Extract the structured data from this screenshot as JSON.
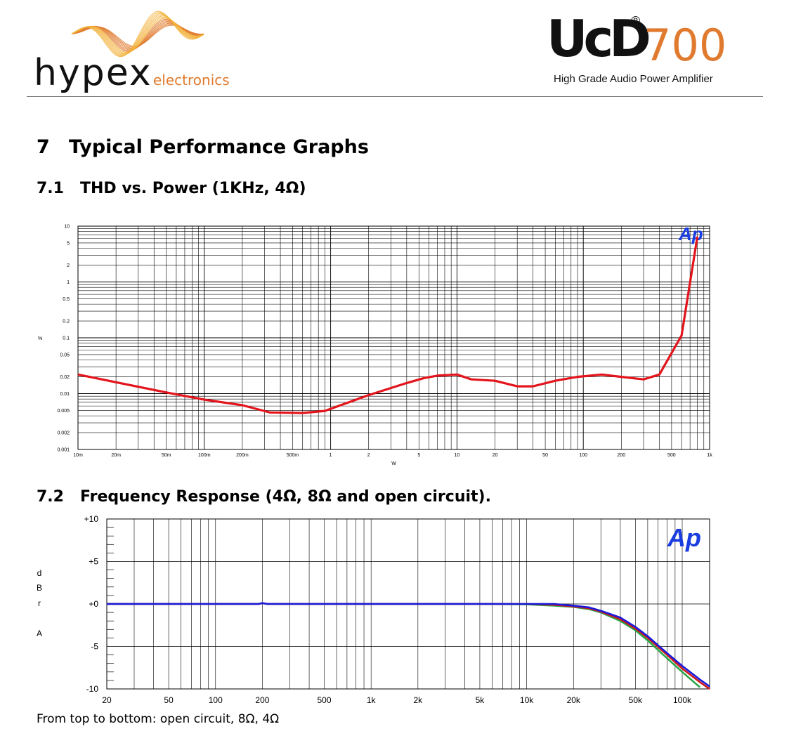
{
  "header": {
    "brand_left": "hypex",
    "brand_left_sub": "electronics",
    "brand_right_ucd": "UcD",
    "brand_right_registered": "®",
    "brand_right_model": "700",
    "brand_right_tagline": "High Grade Audio Power Amplifier",
    "brand_orange": "#e07a2e"
  },
  "section": {
    "number": "7",
    "title": "Typical Performance Graphs"
  },
  "subsections": [
    {
      "number": "7.1",
      "title": "THD  vs. Power (1KHz, 4Ω)"
    },
    {
      "number": "7.2",
      "title": "Frequency Response (4Ω, 8Ω and open circuit)."
    }
  ],
  "caption": "From top to bottom: open circuit, 8Ω, 4Ω",
  "chart_data": [
    {
      "type": "line",
      "title": "",
      "xlabel": "W",
      "ylabel": "%",
      "x_scale": "log",
      "y_scale": "log",
      "xlim": [
        0.01,
        1000
      ],
      "ylim": [
        0.001,
        10
      ],
      "grid": true,
      "logo": "Ap",
      "x_ticks": [
        {
          "v": 0.01,
          "label": "10m"
        },
        {
          "v": 0.02,
          "label": "20m"
        },
        {
          "v": 0.05,
          "label": "50m"
        },
        {
          "v": 0.1,
          "label": "100m"
        },
        {
          "v": 0.2,
          "label": "200m"
        },
        {
          "v": 0.5,
          "label": "500m"
        },
        {
          "v": 1,
          "label": "1"
        },
        {
          "v": 2,
          "label": "2"
        },
        {
          "v": 5,
          "label": "5"
        },
        {
          "v": 10,
          "label": "10"
        },
        {
          "v": 20,
          "label": "20"
        },
        {
          "v": 50,
          "label": "50"
        },
        {
          "v": 100,
          "label": "100"
        },
        {
          "v": 200,
          "label": "200"
        },
        {
          "v": 500,
          "label": "500"
        },
        {
          "v": 1000,
          "label": "1k"
        }
      ],
      "y_ticks": [
        {
          "v": 10,
          "label": "10"
        },
        {
          "v": 5,
          "label": "5"
        },
        {
          "v": 2,
          "label": "2"
        },
        {
          "v": 1,
          "label": "1"
        },
        {
          "v": 0.5,
          "label": "0.5"
        },
        {
          "v": 0.2,
          "label": "0.2"
        },
        {
          "v": 0.1,
          "label": "0.1"
        },
        {
          "v": 0.05,
          "label": "0.05"
        },
        {
          "v": 0.02,
          "label": "0.02"
        },
        {
          "v": 0.01,
          "label": "0.01"
        },
        {
          "v": 0.005,
          "label": "0.005"
        },
        {
          "v": 0.002,
          "label": "0.002"
        },
        {
          "v": 0.001,
          "label": "0.001"
        }
      ],
      "series": [
        {
          "color": "#e3141b",
          "x": [
            0.01,
            0.02,
            0.05,
            0.1,
            0.2,
            0.33,
            0.6,
            0.9,
            2,
            4,
            5.5,
            7,
            10,
            13,
            20,
            30,
            40,
            60,
            90,
            140,
            200,
            300,
            400,
            600,
            800
          ],
          "y": [
            0.022,
            0.016,
            0.0105,
            0.0078,
            0.0062,
            0.0046,
            0.0045,
            0.0049,
            0.0094,
            0.0155,
            0.019,
            0.021,
            0.022,
            0.018,
            0.017,
            0.0135,
            0.0135,
            0.017,
            0.02,
            0.022,
            0.02,
            0.018,
            0.022,
            0.11,
            6.5
          ]
        }
      ]
    },
    {
      "type": "line",
      "title": "",
      "xlabel": "",
      "ylabel": "dBrA",
      "x_scale": "log",
      "xlim": [
        20,
        150000
      ],
      "ylim": [
        -10,
        10
      ],
      "grid": true,
      "logo": "Ap",
      "x_ticks": [
        {
          "v": 20,
          "label": "20"
        },
        {
          "v": 50,
          "label": "50"
        },
        {
          "v": 100,
          "label": "100"
        },
        {
          "v": 200,
          "label": "200"
        },
        {
          "v": 500,
          "label": "500"
        },
        {
          "v": 1000,
          "label": "1k"
        },
        {
          "v": 2000,
          "label": "2k"
        },
        {
          "v": 5000,
          "label": "5k"
        },
        {
          "v": 10000,
          "label": "10k"
        },
        {
          "v": 20000,
          "label": "20k"
        },
        {
          "v": 50000,
          "label": "50k"
        },
        {
          "v": 100000,
          "label": "100k"
        }
      ],
      "y_ticks": [
        {
          "v": 10,
          "label": "+10"
        },
        {
          "v": 5,
          "label": "+5"
        },
        {
          "v": 0,
          "label": "+0"
        },
        {
          "v": -5,
          "label": "-5"
        },
        {
          "v": -10,
          "label": "-10"
        }
      ],
      "series": [
        {
          "name": "open circuit",
          "color": "#1a1adc",
          "x": [
            20,
            50,
            100,
            190,
            200,
            215,
            500,
            1000,
            2000,
            5000,
            10000,
            15000,
            20000,
            25000,
            30000,
            40000,
            50000,
            60000,
            80000,
            100000,
            130000,
            150000
          ],
          "y": [
            0,
            0,
            0,
            0,
            0.1,
            0,
            0,
            0,
            0,
            0,
            0,
            0,
            -0.2,
            -0.4,
            -0.8,
            -1.6,
            -2.7,
            -3.8,
            -5.8,
            -7.3,
            -8.9,
            -9.7
          ]
        },
        {
          "name": "8Ω",
          "color": "#cc1a1a",
          "x": [
            20,
            50,
            100,
            190,
            200,
            215,
            500,
            1000,
            2000,
            5000,
            10000,
            15000,
            20000,
            25000,
            30000,
            40000,
            50000,
            60000,
            80000,
            100000,
            130000,
            150000
          ],
          "y": [
            0,
            0,
            0,
            0,
            0.1,
            0,
            0,
            0,
            0,
            0,
            0,
            -0.1,
            -0.3,
            -0.5,
            -0.9,
            -1.8,
            -2.9,
            -4.0,
            -6.0,
            -7.6,
            -9.2,
            -10.0
          ]
        },
        {
          "name": "4Ω",
          "color": "#2aa84a",
          "x": [
            20,
            50,
            100,
            190,
            200,
            215,
            500,
            1000,
            2000,
            5000,
            10000,
            15000,
            20000,
            25000,
            30000,
            40000,
            50000,
            60000,
            80000,
            100000,
            130000
          ],
          "y": [
            0,
            0,
            0,
            0,
            0.1,
            0,
            0,
            0,
            0,
            0,
            -0.05,
            -0.2,
            -0.35,
            -0.6,
            -1.0,
            -2.0,
            -3.1,
            -4.3,
            -6.4,
            -8.0,
            -9.8
          ]
        }
      ]
    }
  ]
}
